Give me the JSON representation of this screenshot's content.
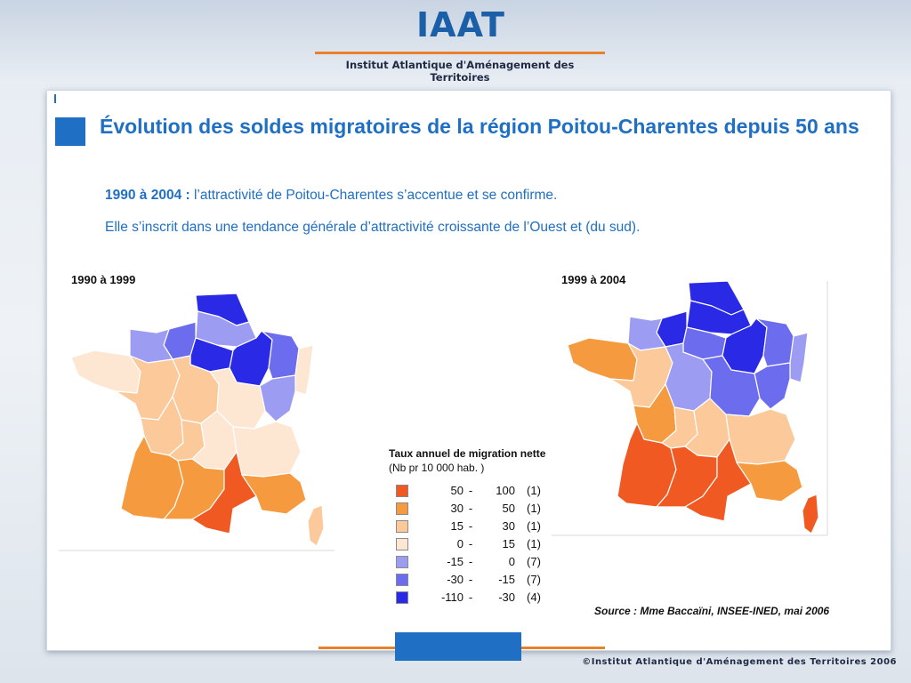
{
  "header": {
    "logo": "IAAT",
    "subtitle": "Institut Atlantique d'Aménagement des Territoires"
  },
  "slide": {
    "title": "Évolution des soldes migratoires de la région Poitou-Charentes depuis 50 ans",
    "intro_bold": "1990 à 2004 :",
    "intro_text": " l’attractivité de Poitou-Charentes s’accentue et se confirme.",
    "intro_line2": "Elle s’inscrit dans une tendance générale d’attractivité croissante de l’Ouest et (du sud)."
  },
  "maps": [
    {
      "caption": "1990 à 1999"
    },
    {
      "caption": "1999 à 2004"
    }
  ],
  "legend": {
    "title_bold": "Taux annuel de migration nette",
    "title_unit": " (Nb pr 10 000 hab. )",
    "classes": [
      {
        "low": "50",
        "high": "100",
        "count": "(1)",
        "color": "#f05a22"
      },
      {
        "low": "30",
        "high": "50",
        "count": "(1)",
        "color": "#f59a3e"
      },
      {
        "low": "15",
        "high": "30",
        "count": "(1)",
        "color": "#fbc99a"
      },
      {
        "low": "0",
        "high": "15",
        "count": "(1)",
        "color": "#fde6d2"
      },
      {
        "low": "-15",
        "high": "0",
        "count": "(7)",
        "color": "#9d9cf3"
      },
      {
        "low": "-30",
        "high": "-15",
        "count": "(7)",
        "color": "#6c6cee"
      },
      {
        "low": "-110",
        "high": "-30",
        "count": "(4)",
        "color": "#2a2ae6"
      }
    ]
  },
  "source": "Source : Mme Baccaïni, INSEE-INED, mai 2006",
  "footer": {
    "copyright": "©Institut Atlantique d'Aménagement des Territoires 2006"
  }
}
